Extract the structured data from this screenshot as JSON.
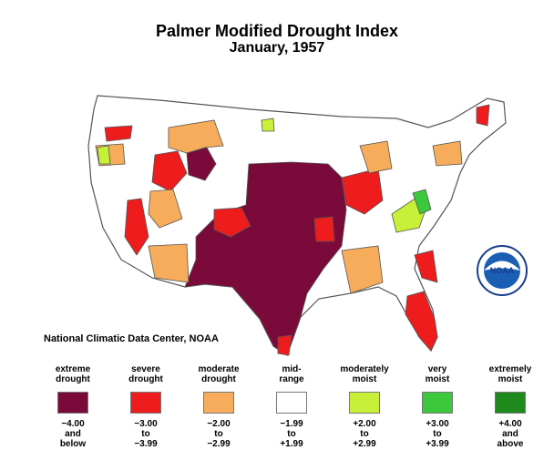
{
  "header": {
    "title": "Palmer Modified Drought Index",
    "subtitle": "January, 1957"
  },
  "credit": "National Climatic Data Center, NOAA",
  "logo": {
    "text": "NOAA",
    "icon": "noaa-logo-icon"
  },
  "colors": {
    "extreme": "#7a0a3a",
    "severe": "#ee1c1c",
    "moderate": "#f6ac5a",
    "mid": "#ffffff",
    "moderately_moist": "#c8f038",
    "very_moist": "#3cc83c",
    "extremely_moist": "#1e8a1e",
    "border": "#555555"
  },
  "legend": [
    {
      "label1": "extreme",
      "label2": "drought",
      "r1": "−4.00",
      "r2": "and",
      "r3": "below",
      "color": "#7a0a3a"
    },
    {
      "label1": "severe",
      "label2": "drought",
      "r1": "−3.00",
      "r2": "to",
      "r3": "−3.99",
      "color": "#ee1c1c"
    },
    {
      "label1": "moderate",
      "label2": "drought",
      "r1": "−2.00",
      "r2": "to",
      "r3": "−2.99",
      "color": "#f6ac5a"
    },
    {
      "label1": "mid-",
      "label2": "range",
      "r1": "−1.99",
      "r2": "to",
      "r3": "+1.99",
      "color": "#ffffff"
    },
    {
      "label1": "moderately",
      "label2": "moist",
      "r1": "+2.00",
      "r2": "to",
      "r3": "+2.99",
      "color": "#c8f038"
    },
    {
      "label1": "very",
      "label2": "moist",
      "r1": "+3.00",
      "r2": "to",
      "r3": "+3.99",
      "color": "#3cc83c"
    },
    {
      "label1": "extremely",
      "label2": "moist",
      "r1": "+4.00",
      "r2": "and",
      "r3": "above",
      "color": "#1e8a1e"
    }
  ]
}
